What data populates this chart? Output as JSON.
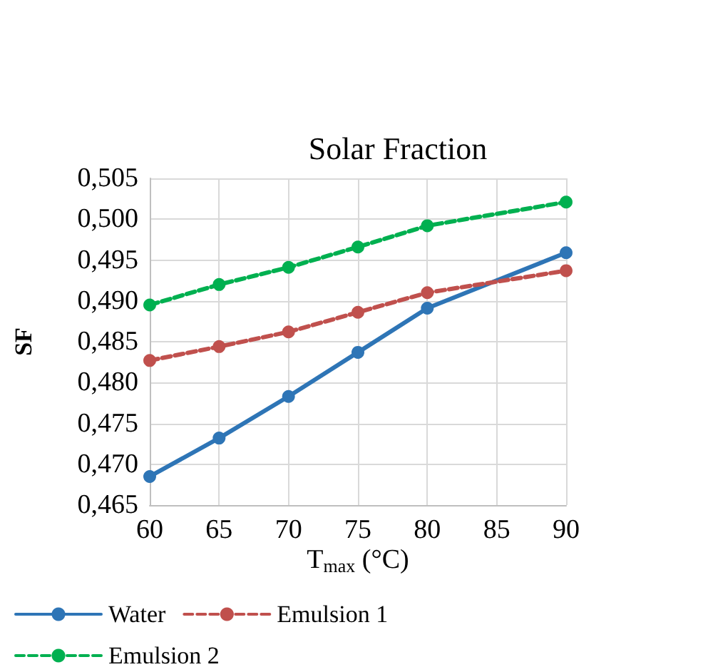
{
  "chart_data": {
    "type": "line",
    "title": "Solar Fraction",
    "xlabel": "T$_{max}$ (°C)",
    "ylabel": "SF",
    "x": [
      60,
      65,
      70,
      75,
      80,
      90
    ],
    "series": [
      {
        "name": "Water",
        "color": "#2e75b6",
        "line_style": "solid",
        "values": [
          0.4685,
          0.4732,
          0.4783,
          0.4837,
          0.4891,
          0.4959
        ]
      },
      {
        "name": "Emulsion 1",
        "color": "#c0504d",
        "line_style": "dashed",
        "values": [
          0.4827,
          0.4844,
          0.4862,
          0.4886,
          0.491,
          0.4937
        ]
      },
      {
        "name": "Emulsion 2",
        "color": "#00b050",
        "line_style": "dashed",
        "values": [
          0.4895,
          0.492,
          0.4941,
          0.4966,
          0.4992,
          0.5021
        ]
      }
    ],
    "xlim": [
      60,
      90
    ],
    "xticks": [
      60,
      65,
      70,
      75,
      80,
      85,
      90
    ],
    "ylim": [
      0.465,
      0.505
    ],
    "yticks": [
      {
        "value": 0.465,
        "label": "0,465"
      },
      {
        "value": 0.47,
        "label": "0,470"
      },
      {
        "value": 0.475,
        "label": "0,475"
      },
      {
        "value": 0.48,
        "label": "0,480"
      },
      {
        "value": 0.485,
        "label": "0,485"
      },
      {
        "value": 0.49,
        "label": "0,490"
      },
      {
        "value": 0.495,
        "label": "0,495"
      },
      {
        "value": 0.5,
        "label": "0,500"
      },
      {
        "value": 0.505,
        "label": "0,505"
      }
    ],
    "grid": true,
    "legend": "bottom",
    "marker": "circle"
  }
}
